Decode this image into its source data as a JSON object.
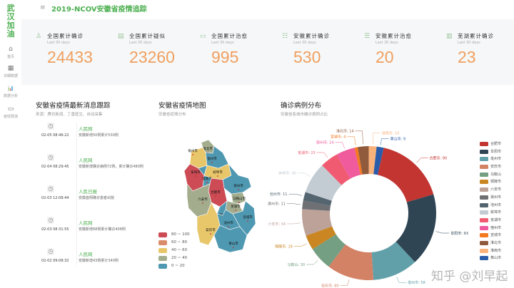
{
  "sidebar": {
    "brand": "武汉加油",
    "items": [
      {
        "icon": "home-icon",
        "glyph": "⌂",
        "label": "首页"
      },
      {
        "icon": "grid-icon",
        "glyph": "▦",
        "label": "详细数据"
      },
      {
        "icon": "bar-chart-icon",
        "glyph": "📊",
        "label": "数据分析"
      },
      {
        "icon": "monitor-icon",
        "glyph": "▭",
        "label": "疫情预测"
      }
    ]
  },
  "header": {
    "menu_icon": "≡",
    "title": "2019-NCOV安徽省疫情追踪"
  },
  "stats": [
    {
      "icon": "user-icon",
      "glyph": "♙",
      "label": "全国累计确诊",
      "sub": "Last 30 days",
      "value": "24433"
    },
    {
      "icon": "document-icon",
      "glyph": "▤",
      "label": "全国累计疑似",
      "sub": "Last 30 days",
      "value": "23260"
    },
    {
      "icon": "card-icon",
      "glyph": "▭",
      "label": "全国累计治愈",
      "sub": "Last 30 days",
      "value": "995"
    },
    {
      "icon": "list-icon",
      "glyph": "☷",
      "label": "安徽累计确诊",
      "sub": "Last 30 days",
      "value": "530"
    },
    {
      "icon": "lines-icon",
      "glyph": "☰",
      "label": "安徽累计治愈",
      "sub": "Last 30 days",
      "value": "20"
    },
    {
      "icon": "table-icon",
      "glyph": "▥",
      "label": "芜湖累计确诊",
      "sub": "Last 30 days",
      "value": "23"
    }
  ],
  "news": {
    "title": "安徽省疫情最新消息跟踪",
    "sub": "来源：腾讯新闻、丁香医生、自动采集",
    "items": [
      {
        "time": "02-05 08:46:22",
        "source": "人民网",
        "text": "安徽新增50例累计530例"
      },
      {
        "time": "02-04 08:29:45",
        "source": "人民网",
        "text": "安徽新增确诊病例72例，累计确诊480例"
      },
      {
        "time": "02-03 12:08:44",
        "source": "人民日报",
        "text": "安徽首例确诊患者出院"
      },
      {
        "time": "02-03 08:31:55",
        "source": "人民网",
        "text": "安徽新增68例累计确诊408例"
      },
      {
        "time": "02-02 09:08:32",
        "source": "人民网",
        "text": "安徽新增43例累计340例"
      }
    ]
  },
  "map": {
    "title": "安徽省疫情地图",
    "sub": "安徽省疫情分布",
    "legend": [
      {
        "label": "80 ~ 100",
        "color": "#cc4b55"
      },
      {
        "label": "60 ~ 80",
        "color": "#d98b6a"
      },
      {
        "label": "40 ~ 60",
        "color": "#e8c66a"
      },
      {
        "label": "20 ~ 40",
        "color": "#a3ad8e"
      },
      {
        "label": "0 ~ 20",
        "color": "#4f98b1"
      }
    ],
    "cities": [
      "淮北市",
      "亳州市",
      "宿州市",
      "阜阳市",
      "蚌埠市",
      "淮南市",
      "滁州市",
      "合肥市",
      "六安市",
      "马鞍山市",
      "芜湖市",
      "铜陵市",
      "宣城市",
      "池州市",
      "安庆市",
      "黄山市"
    ]
  },
  "chart_data": {
    "type": "pie",
    "title": "确诊病例分布",
    "subtitle": "安徽省各城市确诊病例占比",
    "legend_position": "right",
    "categories": [
      "合肥市",
      "阜阳市",
      "亳州市",
      "安庆市",
      "马鞍山",
      "铜陵市",
      "六安市",
      "滁州市",
      "池州市",
      "蚌埠市",
      "芜湖市",
      "宿州市",
      "宣城市",
      "淮北市",
      "淮南市",
      "黄山市"
    ],
    "values": [
      90,
      93,
      58,
      60,
      30,
      19,
      34,
      11,
      11,
      40,
      23,
      24,
      4,
      14,
      10,
      9
    ],
    "colors": [
      "#c23531",
      "#2f4554",
      "#61a0a8",
      "#d48265",
      "#749f83",
      "#ca8622",
      "#bda29a",
      "#6e7074",
      "#546570",
      "#c4ccd3",
      "#f05b72",
      "#ef5b9c",
      "#f47920",
      "#905a3d",
      "#fab27b",
      "#2a5caa"
    ]
  },
  "watermark": "知乎 @刘早起"
}
